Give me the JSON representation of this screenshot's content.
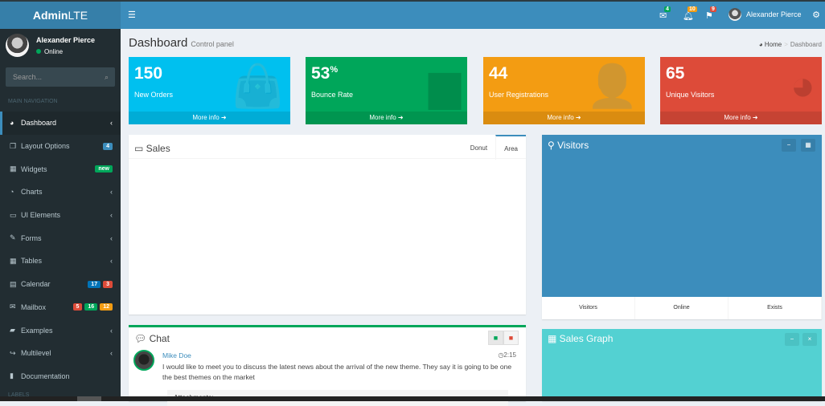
{
  "header": {
    "logo_bold": "Admin",
    "logo_light": "LTE",
    "messages_count": "4",
    "notifications_count": "10",
    "tasks_count": "9",
    "user_name": "Alexander Pierce"
  },
  "sidebar": {
    "user_name": "Alexander Pierce",
    "status": "Online",
    "search_placeholder": "Search...",
    "section_label": "MAIN NAVIGATION",
    "labels_header": "LABELS",
    "items": [
      {
        "label": "Dashboard",
        "icon": "dashboard-icon",
        "glyph": "◕"
      },
      {
        "label": "Layout Options",
        "icon": "files-icon",
        "glyph": "❐",
        "badges": [
          {
            "text": "4",
            "color": "#3c8dbc"
          }
        ]
      },
      {
        "label": "Widgets",
        "icon": "th-icon",
        "glyph": "▦",
        "badges": [
          {
            "text": "new",
            "color": "#00a65a"
          }
        ]
      },
      {
        "label": "Charts",
        "icon": "pie-chart-icon",
        "glyph": "◔"
      },
      {
        "label": "UI Elements",
        "icon": "laptop-icon",
        "glyph": "▭"
      },
      {
        "label": "Forms",
        "icon": "edit-icon",
        "glyph": "✎"
      },
      {
        "label": "Tables",
        "icon": "table-icon",
        "glyph": "▦"
      },
      {
        "label": "Calendar",
        "icon": "calendar-icon",
        "glyph": "▤",
        "badges": [
          {
            "text": "17",
            "color": "#0073b7"
          },
          {
            "text": "3",
            "color": "#dd4b39"
          }
        ]
      },
      {
        "label": "Mailbox",
        "icon": "envelope-icon",
        "glyph": "✉",
        "badges": [
          {
            "text": "5",
            "color": "#dd4b39"
          },
          {
            "text": "16",
            "color": "#00a65a"
          },
          {
            "text": "12",
            "color": "#f39c12"
          }
        ]
      },
      {
        "label": "Examples",
        "icon": "folder-icon",
        "glyph": "▰"
      },
      {
        "label": "Multilevel",
        "icon": "share-icon",
        "glyph": "↪"
      },
      {
        "label": "Documentation",
        "icon": "book-icon",
        "glyph": "▮"
      }
    ]
  },
  "page": {
    "title": "Dashboard",
    "subtitle": "Control panel",
    "breadcrumb_home": "Home",
    "breadcrumb_current": "Dashboard"
  },
  "info_boxes": [
    {
      "value": "150",
      "sup": "",
      "label": "New Orders",
      "more": "More info ➜",
      "color": "#00c0ef",
      "icon": "shopping-bag-icon",
      "glyph": "👜"
    },
    {
      "value": "53",
      "sup": "%",
      "label": "Bounce Rate",
      "more": "More info ➜",
      "color": "#00a65a",
      "icon": "bar-chart-icon",
      "glyph": "▆"
    },
    {
      "value": "44",
      "sup": "",
      "label": "User Registrations",
      "more": "More info ➜",
      "color": "#f39c12",
      "icon": "user-plus-icon",
      "glyph": "👤"
    },
    {
      "value": "65",
      "sup": "",
      "label": "Unique Visitors",
      "more": "More info ➜",
      "color": "#dd4b39",
      "icon": "pie-chart-icon",
      "glyph": "◕"
    }
  ],
  "sales": {
    "title": "Sales",
    "tabs": [
      "Donut",
      "Area"
    ],
    "active_tab": "Area"
  },
  "visitors": {
    "title": "Visitors",
    "footer": [
      "Visitors",
      "Online",
      "Exists"
    ]
  },
  "chat": {
    "title": "Chat",
    "message": {
      "author": "Mike Doe",
      "time": "2:15",
      "text": "I would like to meet you to discuss the latest news about the arrival of the new theme. They say it is going to be one the best themes on the market",
      "attachments_label": "Attachments:"
    }
  },
  "sales_graph": {
    "title": "Sales Graph"
  }
}
